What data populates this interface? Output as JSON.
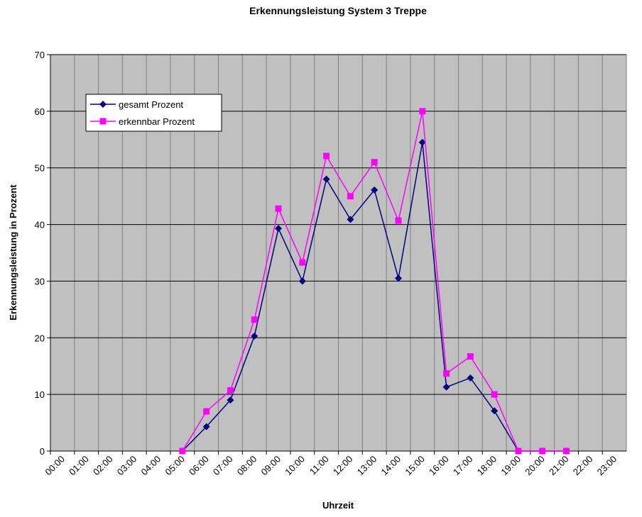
{
  "chart_data": {
    "type": "line",
    "title": "Erkennungsleistung System 3 Treppe",
    "x_label": "Uhrzeit",
    "y_label": "Erkennungsleistung in Prozent",
    "categories": [
      "00:00",
      "01:00",
      "02:00",
      "03:00",
      "04:00",
      "05:00",
      "06:00",
      "07:00",
      "08:00",
      "09:00",
      "10:00",
      "11:00",
      "12:00",
      "13:00",
      "14:00",
      "15:00",
      "16:00",
      "17:00",
      "18:00",
      "19:00",
      "20:00",
      "21:00",
      "22:00",
      "23:00"
    ],
    "series": [
      {
        "name": "gesamt Prozent",
        "color": "#000080",
        "marker": "diamond",
        "values": [
          null,
          null,
          null,
          null,
          null,
          0,
          4.3,
          9,
          20.3,
          39.3,
          30,
          48,
          40.9,
          46.1,
          30.5,
          54.5,
          11.3,
          12.9,
          7.1,
          0,
          0,
          0,
          null,
          null
        ]
      },
      {
        "name": "erkennbar Prozent",
        "color": "#ff00ff",
        "marker": "square",
        "values": [
          null,
          null,
          null,
          null,
          null,
          0,
          7,
          10.7,
          23.2,
          42.8,
          33.3,
          52.1,
          45,
          51,
          40.7,
          60,
          13.7,
          16.7,
          10,
          0,
          0,
          0,
          null,
          null
        ]
      }
    ],
    "ylim": [
      0,
      70
    ],
    "yticks": [
      0,
      10,
      20,
      30,
      40,
      50,
      60,
      70
    ],
    "grid": true,
    "legend": "upper left"
  }
}
